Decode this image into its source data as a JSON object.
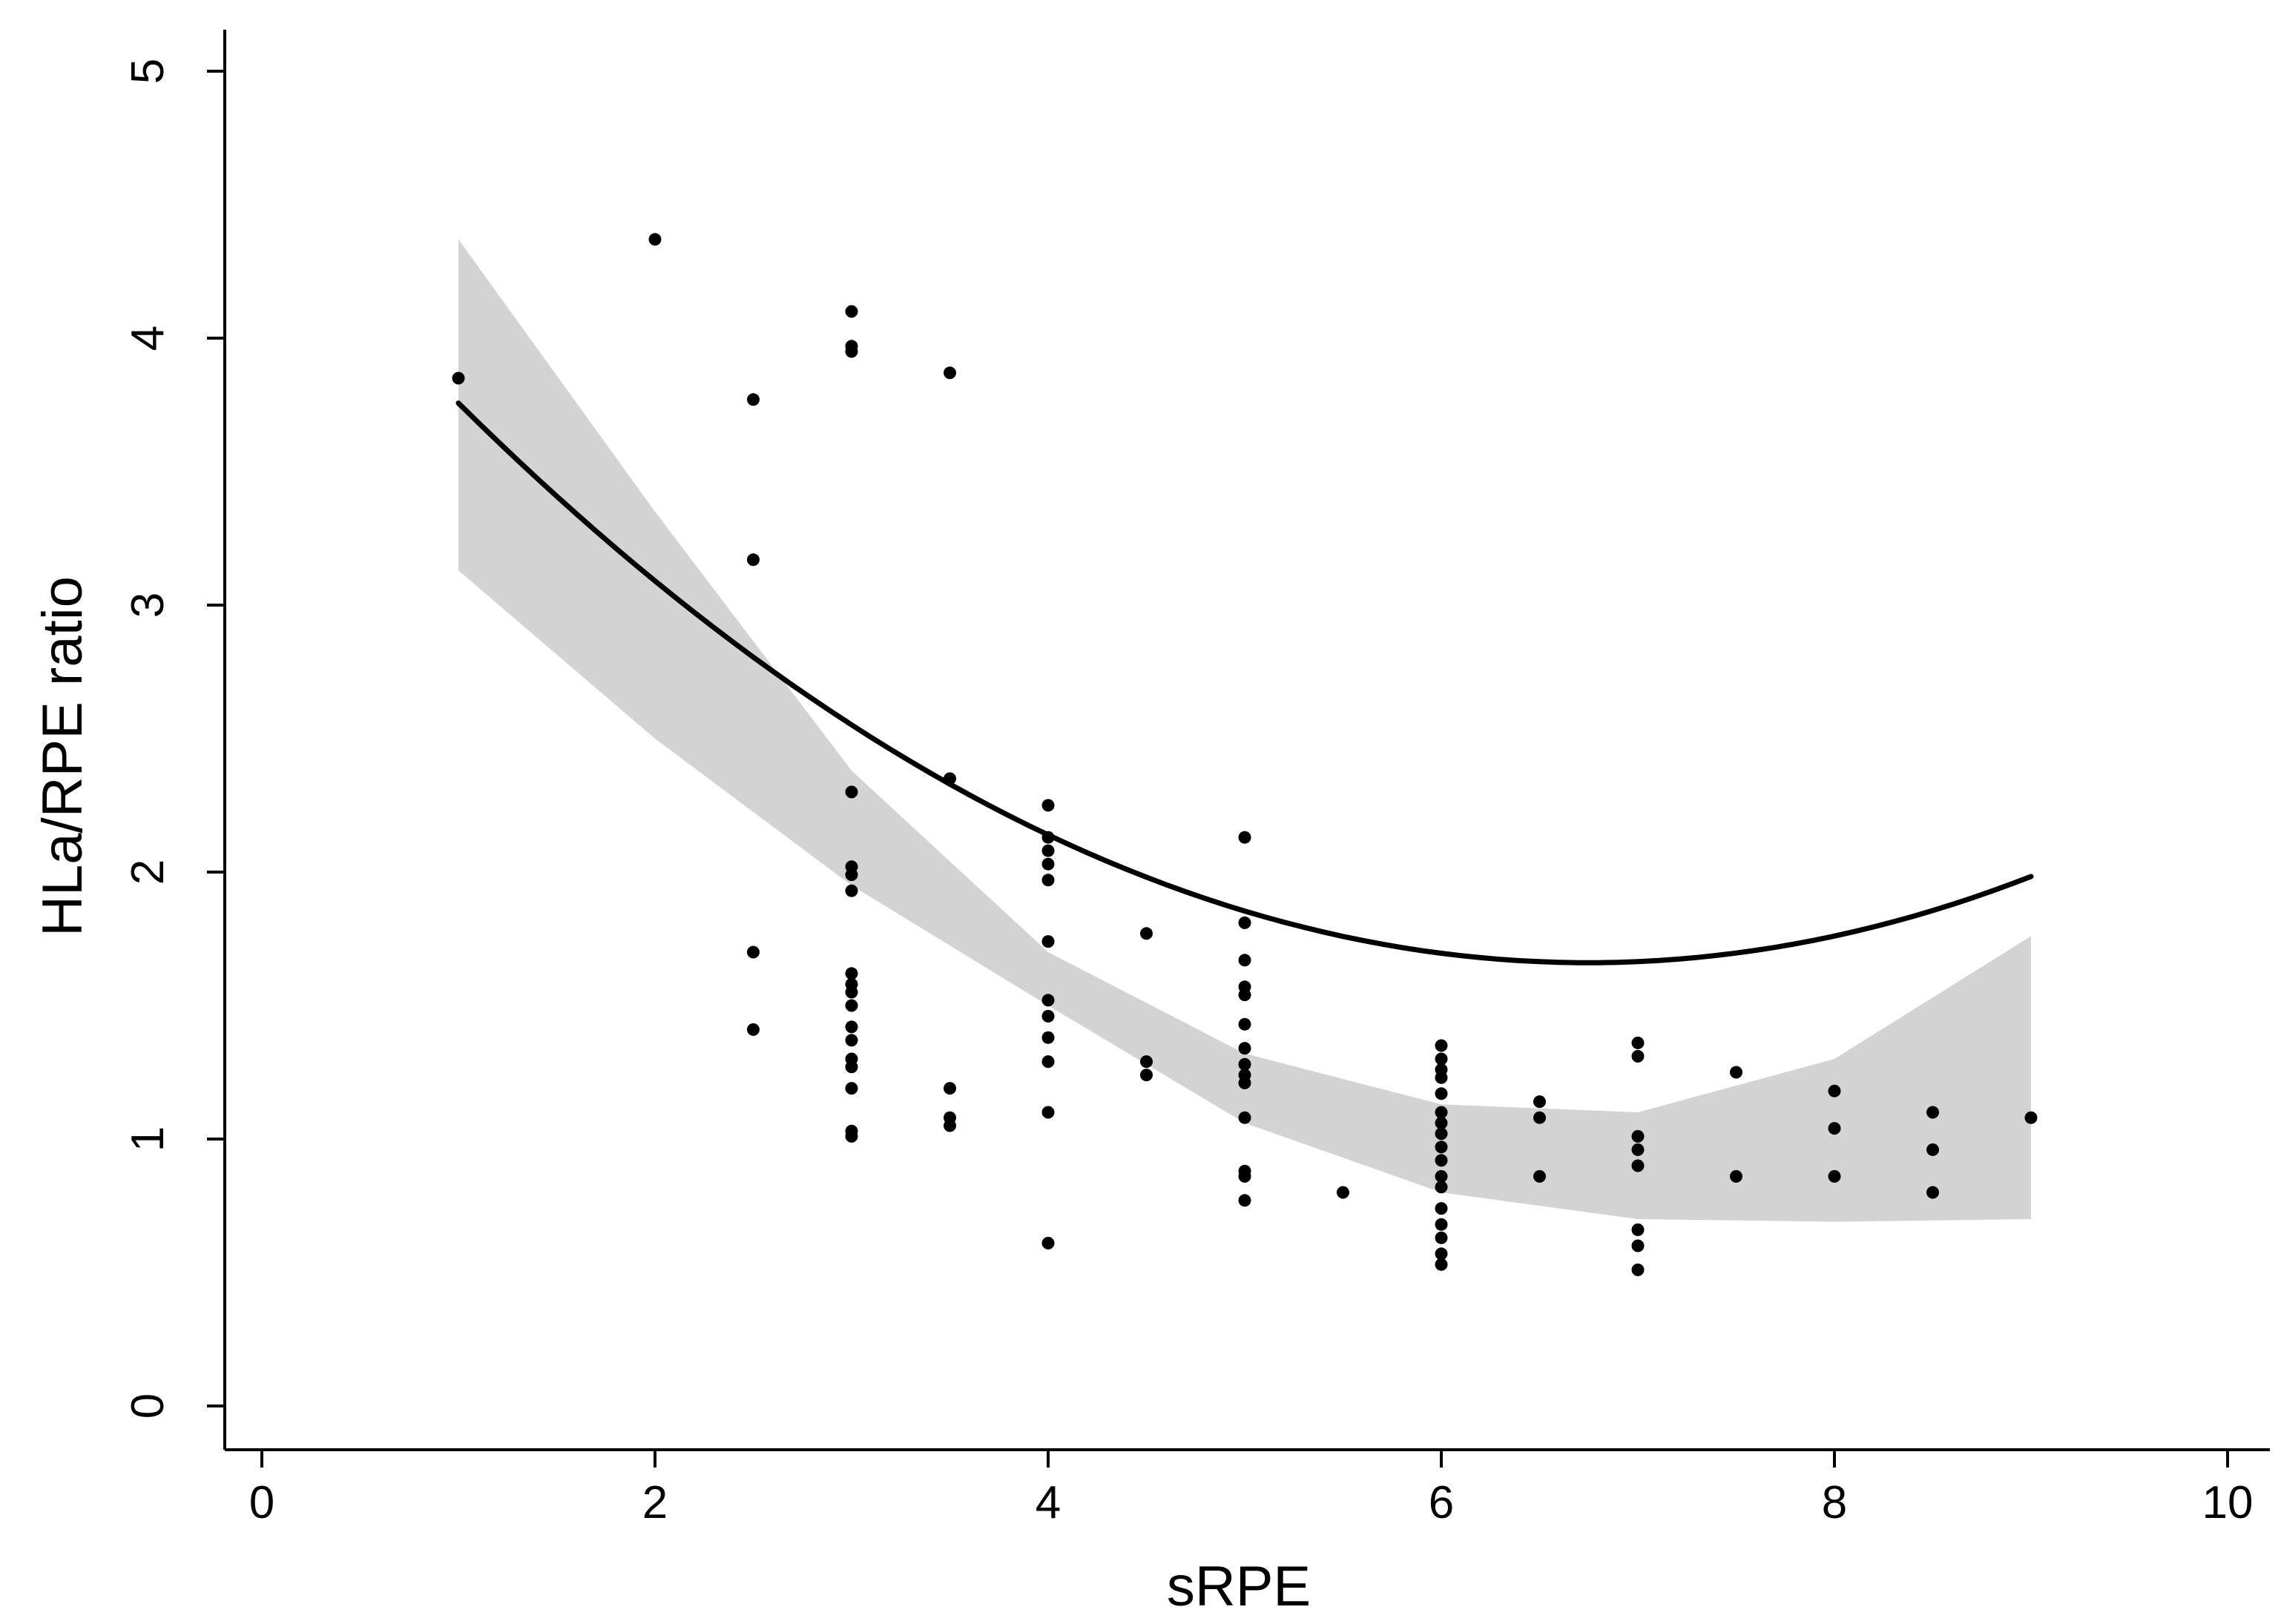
{
  "chart_data": {
    "type": "scatter",
    "title": "",
    "xlabel": "sRPE",
    "ylabel": "HLa/RPE ratio",
    "xlim": [
      0,
      10
    ],
    "ylim": [
      0,
      5
    ],
    "x_ticks": [
      0,
      2,
      4,
      6,
      8,
      10
    ],
    "y_ticks": [
      0,
      1,
      2,
      3,
      4,
      5
    ],
    "x_tick_labels": [
      "0",
      "2",
      "4",
      "6",
      "8",
      "10"
    ],
    "y_tick_labels": [
      "0",
      "1",
      "2",
      "3",
      "4",
      "5"
    ],
    "grid": false,
    "legend": "none",
    "colors": {
      "points": "#000000",
      "fit_line": "#000000",
      "confidence_band": "#d3d3d3",
      "axes": "#000000"
    },
    "points": [
      {
        "x": 1,
        "y": 3.85
      },
      {
        "x": 2,
        "y": 4.37
      },
      {
        "x": 2.5,
        "y": 3.77
      },
      {
        "x": 2.5,
        "y": 3.17
      },
      {
        "x": 2.5,
        "y": 1.7
      },
      {
        "x": 2.5,
        "y": 1.41
      },
      {
        "x": 3,
        "y": 4.1
      },
      {
        "x": 3,
        "y": 3.97
      },
      {
        "x": 3,
        "y": 3.95
      },
      {
        "x": 3,
        "y": 2.3
      },
      {
        "x": 3,
        "y": 2.02
      },
      {
        "x": 3,
        "y": 1.99
      },
      {
        "x": 3,
        "y": 1.93
      },
      {
        "x": 3,
        "y": 1.62
      },
      {
        "x": 3,
        "y": 1.58
      },
      {
        "x": 3,
        "y": 1.55
      },
      {
        "x": 3,
        "y": 1.5
      },
      {
        "x": 3,
        "y": 1.42
      },
      {
        "x": 3,
        "y": 1.37
      },
      {
        "x": 3,
        "y": 1.3
      },
      {
        "x": 3,
        "y": 1.27
      },
      {
        "x": 3,
        "y": 1.19
      },
      {
        "x": 3,
        "y": 1.03
      },
      {
        "x": 3,
        "y": 1.01
      },
      {
        "x": 3.5,
        "y": 3.87
      },
      {
        "x": 3.5,
        "y": 2.35
      },
      {
        "x": 3.5,
        "y": 1.19
      },
      {
        "x": 3.5,
        "y": 1.08
      },
      {
        "x": 3.5,
        "y": 1.05
      },
      {
        "x": 4,
        "y": 2.25
      },
      {
        "x": 4,
        "y": 2.13
      },
      {
        "x": 4,
        "y": 2.08
      },
      {
        "x": 4,
        "y": 2.03
      },
      {
        "x": 4,
        "y": 1.97
      },
      {
        "x": 4,
        "y": 1.74
      },
      {
        "x": 4,
        "y": 1.52
      },
      {
        "x": 4,
        "y": 1.46
      },
      {
        "x": 4,
        "y": 1.38
      },
      {
        "x": 4,
        "y": 1.29
      },
      {
        "x": 4,
        "y": 1.1
      },
      {
        "x": 4,
        "y": 0.61
      },
      {
        "x": 4.5,
        "y": 1.77
      },
      {
        "x": 4.5,
        "y": 1.29
      },
      {
        "x": 4.5,
        "y": 1.24
      },
      {
        "x": 5,
        "y": 2.13
      },
      {
        "x": 5,
        "y": 1.81
      },
      {
        "x": 5,
        "y": 1.67
      },
      {
        "x": 5,
        "y": 1.57
      },
      {
        "x": 5,
        "y": 1.54
      },
      {
        "x": 5,
        "y": 1.43
      },
      {
        "x": 5,
        "y": 1.34
      },
      {
        "x": 5,
        "y": 1.28
      },
      {
        "x": 5,
        "y": 1.24
      },
      {
        "x": 5,
        "y": 1.21
      },
      {
        "x": 5,
        "y": 1.08
      },
      {
        "x": 5,
        "y": 0.88
      },
      {
        "x": 5,
        "y": 0.86
      },
      {
        "x": 5,
        "y": 0.77
      },
      {
        "x": 5.5,
        "y": 0.8
      },
      {
        "x": 6,
        "y": 1.35
      },
      {
        "x": 6,
        "y": 1.3
      },
      {
        "x": 6,
        "y": 1.26
      },
      {
        "x": 6,
        "y": 1.23
      },
      {
        "x": 6,
        "y": 1.17
      },
      {
        "x": 6,
        "y": 1.1
      },
      {
        "x": 6,
        "y": 1.06
      },
      {
        "x": 6,
        "y": 1.02
      },
      {
        "x": 6,
        "y": 0.97
      },
      {
        "x": 6,
        "y": 0.92
      },
      {
        "x": 6,
        "y": 0.86
      },
      {
        "x": 6,
        "y": 0.82
      },
      {
        "x": 6,
        "y": 0.74
      },
      {
        "x": 6,
        "y": 0.68
      },
      {
        "x": 6,
        "y": 0.63
      },
      {
        "x": 6,
        "y": 0.57
      },
      {
        "x": 6,
        "y": 0.53
      },
      {
        "x": 6.5,
        "y": 1.14
      },
      {
        "x": 6.5,
        "y": 1.08
      },
      {
        "x": 6.5,
        "y": 0.86
      },
      {
        "x": 7,
        "y": 1.36
      },
      {
        "x": 7,
        "y": 1.31
      },
      {
        "x": 7,
        "y": 1.01
      },
      {
        "x": 7,
        "y": 0.96
      },
      {
        "x": 7,
        "y": 0.9
      },
      {
        "x": 7,
        "y": 0.66
      },
      {
        "x": 7,
        "y": 0.6
      },
      {
        "x": 7,
        "y": 0.51
      },
      {
        "x": 7.5,
        "y": 1.25
      },
      {
        "x": 7.5,
        "y": 0.86
      },
      {
        "x": 8,
        "y": 1.18
      },
      {
        "x": 8,
        "y": 1.04
      },
      {
        "x": 8,
        "y": 0.86
      },
      {
        "x": 8.5,
        "y": 1.1
      },
      {
        "x": 8.5,
        "y": 0.96
      },
      {
        "x": 8.5,
        "y": 0.8
      },
      {
        "x": 9,
        "y": 1.08
      }
    ],
    "fit": {
      "type": "quadratic",
      "x_range": [
        1,
        9
      ],
      "coefficients": {
        "a": 0.0635,
        "b": -0.8567,
        "c": 4.55
      },
      "ci_lower": [
        [
          1,
          3.13
        ],
        [
          2,
          2.5
        ],
        [
          3,
          1.95
        ],
        [
          4,
          1.5
        ],
        [
          5,
          1.06
        ],
        [
          6,
          0.8
        ],
        [
          7,
          0.7
        ],
        [
          8,
          0.69
        ],
        [
          9,
          0.7
        ]
      ],
      "ci_upper": [
        [
          1,
          4.37
        ],
        [
          2,
          3.35
        ],
        [
          3,
          2.38
        ],
        [
          4,
          1.7
        ],
        [
          5,
          1.32
        ],
        [
          6,
          1.13
        ],
        [
          7,
          1.1
        ],
        [
          8,
          1.3
        ],
        [
          9,
          1.76
        ]
      ]
    }
  }
}
